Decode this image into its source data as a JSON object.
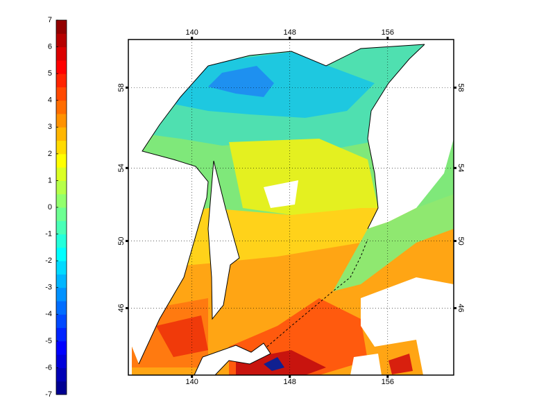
{
  "map": {
    "xlim": [
      134.8,
      161.4
    ],
    "ylim": [
      41.7,
      60.2
    ],
    "projection": "mercator",
    "xticks": [
      140,
      148,
      156
    ],
    "yticks": [
      46,
      50,
      54,
      58
    ],
    "grid": true
  },
  "colorbar": {
    "lim": [
      -7,
      7
    ],
    "ticks": [
      -7,
      -6,
      -5,
      -4,
      -3,
      -2,
      -1,
      0,
      1,
      2,
      3,
      4,
      5,
      6,
      7
    ],
    "levels": 28,
    "colormap": "jet"
  }
}
